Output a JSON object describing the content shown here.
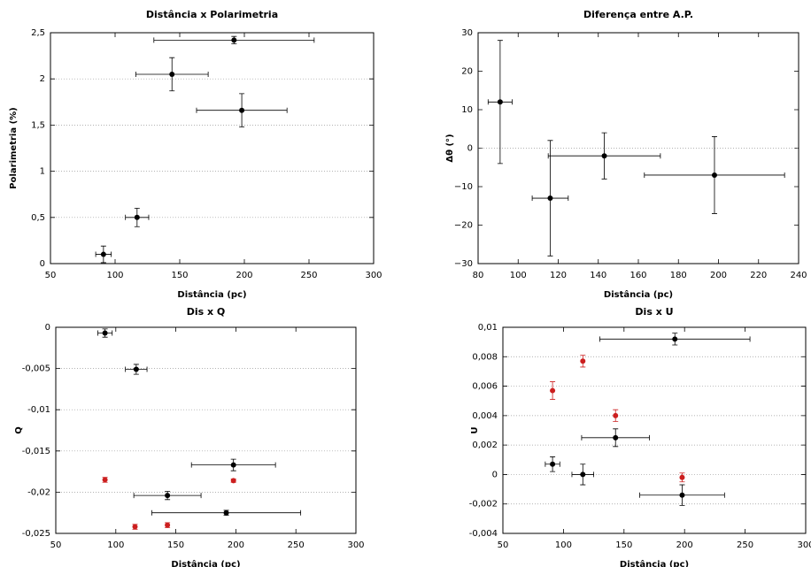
{
  "chart_data": [
    {
      "type": "scatter",
      "title": "Distância x Polarimetria",
      "xlabel": "Distância (pc)",
      "ylabel": "Polarimetria (%)",
      "xlim": [
        50,
        300
      ],
      "xticks": [
        50,
        100,
        150,
        200,
        250,
        300
      ],
      "ylim": [
        0,
        2.5
      ],
      "yticks": [
        0,
        {
          "value": 0.5,
          "label": "0,5"
        },
        1,
        {
          "value": 1.5,
          "label": "1,5"
        },
        2,
        {
          "value": 2.5,
          "label": "2,5"
        }
      ],
      "grid": true,
      "series": [
        {
          "color": "#000000",
          "x": [
            91,
            117,
            144,
            198,
            192
          ],
          "values": [
            0.1,
            0.5,
            2.05,
            1.66,
            2.42
          ],
          "xerr": [
            6,
            9,
            28,
            35,
            62
          ],
          "yerr": [
            0.09,
            0.1,
            0.18,
            0.18,
            0.04
          ]
        }
      ]
    },
    {
      "type": "scatter",
      "title": "Diferença entre A.P.",
      "xlabel": "Distância (pc)",
      "ylabel": "Δθ (°)",
      "xlim": [
        80,
        240
      ],
      "xticks": [
        80,
        100,
        120,
        140,
        160,
        180,
        200,
        220,
        240
      ],
      "ylim": [
        -30,
        30
      ],
      "yticks": [
        {
          "value": -30,
          "label": "−30"
        },
        {
          "value": -20,
          "label": "−20"
        },
        {
          "value": -10,
          "label": "−10"
        },
        0,
        10,
        20,
        30
      ],
      "grid": false,
      "zero_line": true,
      "series": [
        {
          "color": "#000000",
          "x": [
            91,
            116,
            143,
            198
          ],
          "values": [
            12,
            -13,
            -2,
            -7
          ],
          "xerr": [
            6,
            9,
            28,
            35
          ],
          "yerr": [
            16,
            15,
            6,
            10
          ]
        }
      ]
    },
    {
      "type": "scatter",
      "title": "Dis x Q",
      "xlabel": "Distância (pc)",
      "ylabel": "Q",
      "xlim": [
        50,
        300
      ],
      "xticks": [
        50,
        100,
        150,
        200,
        250,
        300
      ],
      "ylim": [
        -0.025,
        0
      ],
      "yticks": [
        {
          "value": -0.025,
          "label": "-0,025"
        },
        {
          "value": -0.02,
          "label": "-0,02"
        },
        {
          "value": -0.015,
          "label": "-0,015"
        },
        {
          "value": -0.01,
          "label": "-0,01"
        },
        {
          "value": -0.005,
          "label": "-0,005"
        },
        0
      ],
      "grid": true,
      "series": [
        {
          "color": "#000000",
          "x": [
            91,
            117,
            143,
            198,
            192
          ],
          "values": [
            -0.0007,
            -0.0051,
            -0.0204,
            -0.0167,
            -0.0225
          ],
          "xerr": [
            6,
            9,
            28,
            35,
            62
          ],
          "yerr": [
            0.0005,
            0.0006,
            0.0005,
            0.0007,
            0.0003
          ]
        },
        {
          "color": "#cc1f1f",
          "x": [
            91,
            116,
            143,
            198
          ],
          "values": [
            -0.0185,
            -0.0242,
            -0.024,
            -0.0186
          ],
          "yerr": [
            0.0003,
            0.0003,
            0.0003,
            0.0002
          ]
        }
      ]
    },
    {
      "type": "scatter",
      "title": "Dis x U",
      "xlabel": "Distância (pc)",
      "ylabel": "U",
      "xlim": [
        50,
        300
      ],
      "xticks": [
        50,
        100,
        150,
        200,
        250,
        300
      ],
      "ylim": [
        -0.004,
        0.01
      ],
      "yticks": [
        {
          "value": -0.004,
          "label": "-0,004"
        },
        {
          "value": -0.002,
          "label": "-0,002"
        },
        0,
        {
          "value": 0.002,
          "label": "0,002"
        },
        {
          "value": 0.004,
          "label": "0,004"
        },
        {
          "value": 0.006,
          "label": "0,006"
        },
        {
          "value": 0.008,
          "label": "0,008"
        },
        {
          "value": 0.01,
          "label": "0,01"
        }
      ],
      "grid": true,
      "series": [
        {
          "color": "#000000",
          "x": [
            91,
            116,
            143,
            198,
            192
          ],
          "values": [
            0.0007,
            0.0,
            0.0025,
            -0.0014,
            0.0092
          ],
          "xerr": [
            6,
            9,
            28,
            35,
            62
          ],
          "yerr": [
            0.0005,
            0.0007,
            0.0006,
            0.0007,
            0.0004
          ]
        },
        {
          "color": "#cc1f1f",
          "x": [
            91,
            116,
            143,
            198
          ],
          "values": [
            0.0057,
            0.0077,
            0.004,
            -0.0002
          ],
          "yerr": [
            0.0006,
            0.0004,
            0.0004,
            0.0003
          ]
        }
      ]
    }
  ]
}
